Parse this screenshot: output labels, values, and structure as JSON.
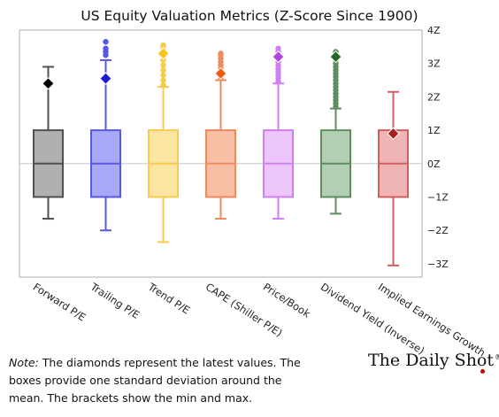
{
  "chart_data": {
    "type": "box",
    "title": "US Equity Valuation Metrics (Z-Score Since 1900)",
    "ylim": [
      -3.4,
      4
    ],
    "yticks": [
      4,
      3,
      2,
      1,
      0,
      -1,
      -2,
      -3
    ],
    "ytick_labels": [
      "4Z",
      "3Z",
      "2Z",
      "1Z",
      "0Z",
      "-1Z",
      "-2Z",
      "-3Z"
    ],
    "grid": false,
    "categories": [
      "Forward P/E",
      "Trailing P/E",
      "Trend P/E",
      "CAPE (Shiller P/E)",
      "Price/Book",
      "Dividend Yield (Inverse)",
      "Implied Earnings Growth"
    ],
    "series": [
      {
        "name": "Forward P/E",
        "color": "#505050",
        "box_fill": "#b0b0b0",
        "min": -1.65,
        "q1": -1,
        "median": 0,
        "q3": 1,
        "max": 2.9,
        "latest": 2.4,
        "outliers": []
      },
      {
        "name": "Trailing P/E",
        "color": "#5858e0",
        "box_fill": "#a8a8f8",
        "min": -2.0,
        "q1": -1,
        "median": 0,
        "q3": 1,
        "max": 3.1,
        "latest": 2.55,
        "outliers": [
          3.25,
          3.35,
          3.45,
          3.65
        ]
      },
      {
        "name": "Trend P/E",
        "color": "#f5cc4c",
        "box_fill": "#fbe5a2",
        "min": -2.35,
        "q1": -1,
        "median": 0,
        "q3": 1,
        "max": 2.3,
        "latest": 3.3,
        "outliers": [
          2.35,
          2.5,
          2.65,
          2.8,
          2.95,
          3.1,
          3.25,
          3.4,
          3.5,
          3.55
        ]
      },
      {
        "name": "CAPE (Shiller P/E)",
        "color": "#ef8a5e",
        "box_fill": "#f9bfa4",
        "min": -1.65,
        "q1": -1,
        "median": 0,
        "q3": 1,
        "max": 2.5,
        "latest": 2.7,
        "outliers": [
          2.55,
          2.65,
          2.75,
          2.85,
          2.95,
          3.05,
          3.15,
          3.25,
          3.3
        ]
      },
      {
        "name": "Price/Book",
        "color": "#cf80ee",
        "box_fill": "#ecc6fb",
        "min": -1.65,
        "q1": -1,
        "median": 0,
        "q3": 1,
        "max": 2.4,
        "latest": 3.2,
        "outliers": [
          2.45,
          2.55,
          2.65,
          2.75,
          2.85,
          2.95,
          3.05,
          3.15,
          3.25,
          3.35,
          3.45
        ]
      },
      {
        "name": "Dividend Yield (Inverse)",
        "color": "#5e8e5e",
        "box_fill": "#b3cfb3",
        "min": -1.5,
        "q1": -1,
        "median": 0,
        "q3": 1,
        "max": 1.65,
        "latest": 3.2,
        "outliers": [
          1.7,
          1.8,
          1.9,
          2.0,
          2.1,
          2.2,
          2.3,
          2.4,
          2.5,
          2.6,
          2.7,
          2.8,
          2.9,
          3.0,
          3.1,
          3.2,
          3.3,
          3.35
        ]
      },
      {
        "name": "Implied Earnings Growth",
        "color": "#d06060",
        "box_fill": "#efb4b4",
        "min": -3.05,
        "q1": -1,
        "median": 0,
        "q3": 1,
        "max": 2.15,
        "latest": 0.9,
        "outliers": []
      }
    ],
    "latest_marker_colors": [
      "#000000",
      "#1c1cd4",
      "#f5c518",
      "#ee5a0e",
      "#b545e0",
      "#236b23",
      "#a81f1f"
    ]
  },
  "note": {
    "label": "Note:",
    "text": " The diamonds represent the latest values. The boxes provide one standard deviation around the mean. The brackets show the min and max."
  },
  "brand": {
    "name": "The Daily Shot",
    "mark": "®"
  }
}
